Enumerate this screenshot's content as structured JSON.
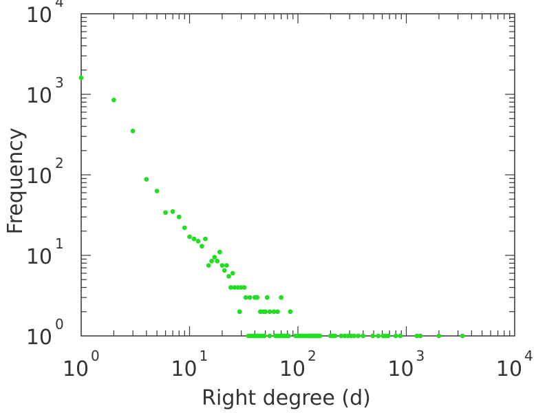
{
  "chart_data": {
    "type": "scatter",
    "xlabel": "Right degree (d)",
    "ylabel": "Frequency",
    "xscale": "log",
    "yscale": "log",
    "xlim": [
      1,
      10000
    ],
    "ylim": [
      1,
      10000
    ],
    "grid": false,
    "marker_color": "#22dd22",
    "axis_color": "#333333",
    "x_ticks": [
      {
        "base": "10",
        "exp": "0",
        "value": 1
      },
      {
        "base": "10",
        "exp": "1",
        "value": 10
      },
      {
        "base": "10",
        "exp": "2",
        "value": 100
      },
      {
        "base": "10",
        "exp": "3",
        "value": 1000
      },
      {
        "base": "10",
        "exp": "4",
        "value": 10000
      }
    ],
    "y_ticks": [
      {
        "base": "10",
        "exp": "0",
        "value": 1
      },
      {
        "base": "10",
        "exp": "1",
        "value": 10
      },
      {
        "base": "10",
        "exp": "2",
        "value": 100
      },
      {
        "base": "10",
        "exp": "3",
        "value": 1000
      },
      {
        "base": "10",
        "exp": "4",
        "value": 10000
      }
    ],
    "points": [
      [
        1,
        1600
      ],
      [
        2,
        850
      ],
      [
        3,
        350
      ],
      [
        4,
        88
      ],
      [
        5,
        63
      ],
      [
        6,
        34
      ],
      [
        7,
        35
      ],
      [
        8,
        30
      ],
      [
        9,
        22
      ],
      [
        10,
        17
      ],
      [
        11,
        16
      ],
      [
        12,
        15
      ],
      [
        13,
        13
      ],
      [
        14,
        16
      ],
      [
        15,
        7.5
      ],
      [
        16,
        8.5
      ],
      [
        17,
        9.5
      ],
      [
        18,
        8.5
      ],
      [
        19,
        11
      ],
      [
        20,
        7.5
      ],
      [
        21,
        6.5
      ],
      [
        22,
        7.5
      ],
      [
        23,
        5.5
      ],
      [
        24,
        4
      ],
      [
        25,
        6
      ],
      [
        26,
        4
      ],
      [
        28,
        4
      ],
      [
        29,
        2
      ],
      [
        30,
        4
      ],
      [
        32,
        4
      ],
      [
        33,
        3
      ],
      [
        36,
        3
      ],
      [
        40,
        3
      ],
      [
        42,
        3
      ],
      [
        45,
        2
      ],
      [
        48,
        2
      ],
      [
        50,
        2
      ],
      [
        52,
        3
      ],
      [
        55,
        2
      ],
      [
        60,
        2
      ],
      [
        65,
        2
      ],
      [
        70,
        3
      ],
      [
        85,
        2
      ],
      [
        35,
        1
      ],
      [
        37,
        1
      ],
      [
        39,
        1
      ],
      [
        41,
        1
      ],
      [
        43,
        1
      ],
      [
        45,
        1
      ],
      [
        47,
        1
      ],
      [
        49,
        1
      ],
      [
        55,
        1
      ],
      [
        62,
        1
      ],
      [
        65,
        1
      ],
      [
        68,
        1
      ],
      [
        72,
        1
      ],
      [
        75,
        1
      ],
      [
        78,
        1
      ],
      [
        82,
        1
      ],
      [
        95,
        1
      ],
      [
        100,
        1
      ],
      [
        105,
        1
      ],
      [
        110,
        1
      ],
      [
        115,
        1
      ],
      [
        120,
        1
      ],
      [
        125,
        1
      ],
      [
        130,
        1
      ],
      [
        135,
        1
      ],
      [
        140,
        1
      ],
      [
        145,
        1
      ],
      [
        150,
        1
      ],
      [
        155,
        1
      ],
      [
        160,
        1
      ],
      [
        200,
        1
      ],
      [
        210,
        1
      ],
      [
        220,
        1
      ],
      [
        250,
        1
      ],
      [
        270,
        1
      ],
      [
        290,
        1
      ],
      [
        310,
        1
      ],
      [
        330,
        1
      ],
      [
        360,
        1
      ],
      [
        400,
        1
      ],
      [
        490,
        1
      ],
      [
        550,
        1
      ],
      [
        610,
        1
      ],
      [
        640,
        1
      ],
      [
        680,
        1
      ],
      [
        800,
        1
      ],
      [
        880,
        1
      ],
      [
        1250,
        1
      ],
      [
        1350,
        1
      ],
      [
        2000,
        1
      ],
      [
        3300,
        1
      ]
    ]
  }
}
